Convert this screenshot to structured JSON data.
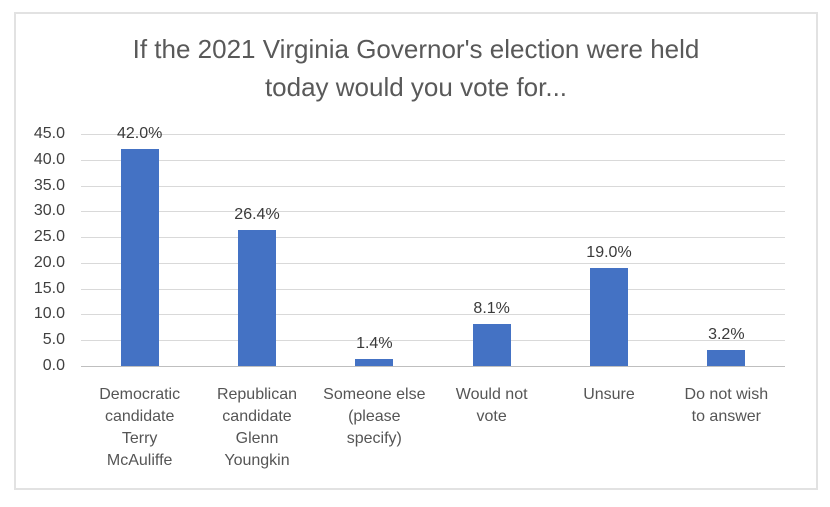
{
  "chart": {
    "title_line1": "If the 2021 Virginia Governor's election were held",
    "title_line2": "today would you vote for...",
    "frame_border_color": "#e2e2e2",
    "gridline_color": "#d9d9d9",
    "axis_line_color": "#bfbfbf",
    "title_color": "#595959",
    "tick_label_color": "#404040",
    "data_label_color": "#3a3a3a",
    "category_label_color": "#555555",
    "bar_color": "#4472C4"
  },
  "chart_data": {
    "type": "bar",
    "title": "If the 2021 Virginia Governor's election were held today would you vote for...",
    "categories": [
      "Democratic candidate Terry McAuliffe",
      "Republican candidate Glenn Youngkin",
      "Someone else (please specify)",
      "Would not vote",
      "Unsure",
      "Do not wish to answer"
    ],
    "categories_wrapped": [
      "Democratic\ncandidate\nTerry\nMcAuliffe",
      "Republican\ncandidate\nGlenn\nYoungkin",
      "Someone else\n(please\nspecify)",
      "Would not\nvote",
      "Unsure",
      "Do not wish\nto answer"
    ],
    "values": [
      42.0,
      26.4,
      1.4,
      8.1,
      19.0,
      3.2
    ],
    "data_labels": [
      "42.0%",
      "26.4%",
      "1.4%",
      "8.1%",
      "19.0%",
      "3.2%"
    ],
    "y_tick_labels": [
      "45.0",
      "40.0",
      "35.0",
      "30.0",
      "25.0",
      "20.0",
      "15.0",
      "10.0",
      "5.0",
      "0.0"
    ],
    "xlabel": "",
    "ylabel": "",
    "ylim": [
      0,
      45
    ],
    "y_tick_step": 5,
    "grid": true,
    "legend": false,
    "bar_color": "#4472C4"
  }
}
